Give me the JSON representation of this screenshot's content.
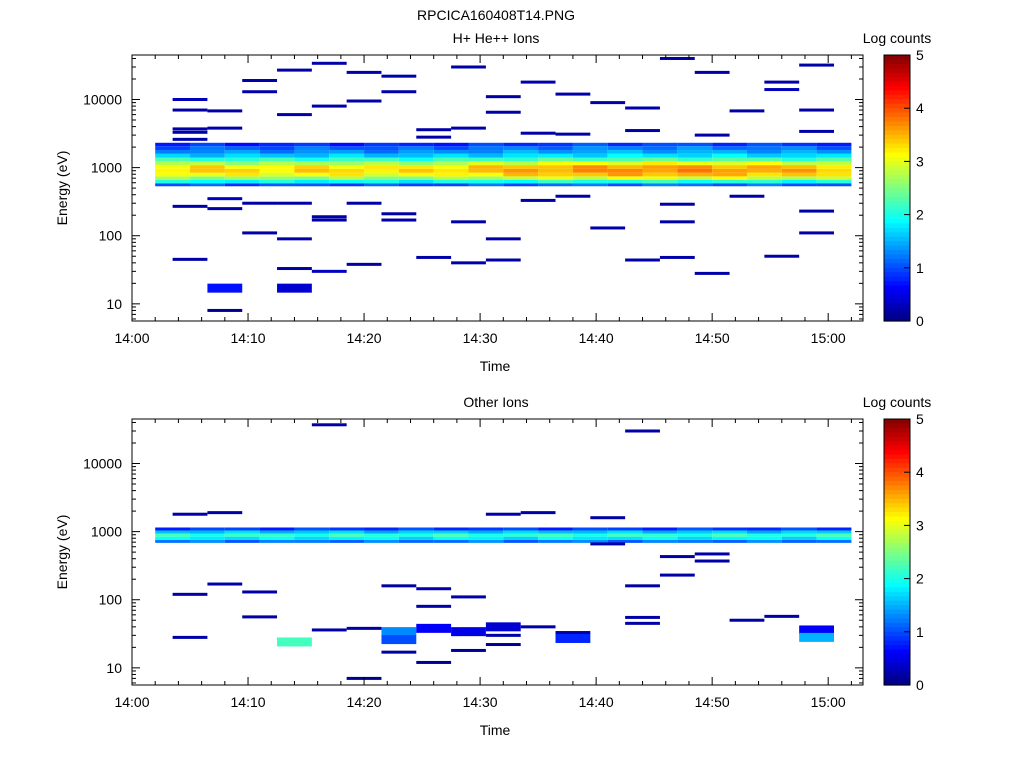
{
  "figure": {
    "title": "RPCICA160408T14.PNG"
  },
  "chart_data": [
    {
      "type": "heatmap",
      "title": "H+ He++ Ions",
      "xlabel": "Time",
      "ylabel": "Energy (eV)",
      "x_ticks": [
        "14:00",
        "14:10",
        "14:20",
        "14:30",
        "14:40",
        "14:50",
        "15:00"
      ],
      "x_range_minutes": [
        0,
        63
      ],
      "y_ticks": [
        10,
        100,
        1000,
        10000
      ],
      "y_scale": "log",
      "y_range": [
        5.6,
        45000
      ],
      "colorbar": {
        "label": "Log counts",
        "ticks": [
          0,
          1,
          2,
          3,
          4,
          5
        ],
        "range": [
          0,
          5
        ]
      },
      "time_columns_minutes": [
        3.5,
        6.5,
        9.5,
        12.5,
        15.5,
        18.5,
        21.5,
        24.5,
        27.5,
        30.5,
        33.5,
        36.5,
        39.5,
        42.5,
        45.5,
        48.5,
        51.5,
        54.5,
        57.5,
        60.5
      ],
      "core_band": {
        "energies_eV": [
          560,
          620,
          700,
          790,
          900,
          1020,
          1160,
          1320,
          1500,
          1700,
          1930,
          2200
        ],
        "profile_log_counts": [
          1.0,
          1.9,
          2.6,
          3.1,
          3.3,
          3.2,
          2.7,
          2.1,
          1.6,
          1.3,
          1.1,
          0.8
        ]
      },
      "sporadic": [
        {
          "t": 5,
          "e": 3300,
          "v": 0.2
        },
        {
          "t": 5,
          "e": 2600,
          "v": 0.2
        },
        {
          "t": 5,
          "e": 10000,
          "v": 0.3
        },
        {
          "t": 5,
          "e": 7000,
          "v": 0.2
        },
        {
          "t": 5,
          "e": 3700,
          "v": 0.2
        },
        {
          "t": 5,
          "e": 270,
          "v": 0.2
        },
        {
          "t": 5,
          "e": 45,
          "v": 0.2
        },
        {
          "t": 8,
          "e": 3800,
          "v": 0.2
        },
        {
          "t": 8,
          "e": 6800,
          "v": 0.2
        },
        {
          "t": 8,
          "e": 350,
          "v": 0.3
        },
        {
          "t": 8,
          "e": 250,
          "v": 0.2
        },
        {
          "t": 8,
          "e": 17,
          "v": 0.7
        },
        {
          "t": 8,
          "e": 8,
          "v": 0.1
        },
        {
          "t": 11,
          "e": 19000,
          "v": 0.2
        },
        {
          "t": 11,
          "e": 13000,
          "v": 0.2
        },
        {
          "t": 11,
          "e": 300,
          "v": 0.2
        },
        {
          "t": 11,
          "e": 110,
          "v": 0.2
        },
        {
          "t": 14,
          "e": 27000,
          "v": 0.2
        },
        {
          "t": 14,
          "e": 6000,
          "v": 0.2
        },
        {
          "t": 14,
          "e": 300,
          "v": 0.2
        },
        {
          "t": 14,
          "e": 90,
          "v": 0.2
        },
        {
          "t": 14,
          "e": 33,
          "v": 0.2
        },
        {
          "t": 14,
          "e": 17,
          "v": 0.4
        },
        {
          "t": 17,
          "e": 34000,
          "v": 0.2
        },
        {
          "t": 17,
          "e": 8000,
          "v": 0.2
        },
        {
          "t": 17,
          "e": 190,
          "v": 0.2
        },
        {
          "t": 17,
          "e": 170,
          "v": 0.2
        },
        {
          "t": 17,
          "e": 30,
          "v": 0.3
        },
        {
          "t": 20,
          "e": 9500,
          "v": 0.2
        },
        {
          "t": 20,
          "e": 25000,
          "v": 0.2
        },
        {
          "t": 20,
          "e": 300,
          "v": 0.2
        },
        {
          "t": 20,
          "e": 38,
          "v": 0.2
        },
        {
          "t": 23,
          "e": 22000,
          "v": 0.2
        },
        {
          "t": 23,
          "e": 13000,
          "v": 0.2
        },
        {
          "t": 23,
          "e": 210,
          "v": 0.2
        },
        {
          "t": 23,
          "e": 170,
          "v": 0.2
        },
        {
          "t": 26,
          "e": 3600,
          "v": 0.2
        },
        {
          "t": 26,
          "e": 2800,
          "v": 0.2
        },
        {
          "t": 26,
          "e": 48,
          "v": 0.2
        },
        {
          "t": 29,
          "e": 30000,
          "v": 0.2
        },
        {
          "t": 29,
          "e": 3800,
          "v": 0.2
        },
        {
          "t": 29,
          "e": 160,
          "v": 0.2
        },
        {
          "t": 29,
          "e": 40,
          "v": 0.2
        },
        {
          "t": 32,
          "e": 6500,
          "v": 0.2
        },
        {
          "t": 32,
          "e": 11000,
          "v": 0.2
        },
        {
          "t": 32,
          "e": 90,
          "v": 0.2
        },
        {
          "t": 32,
          "e": 44,
          "v": 0.2
        },
        {
          "t": 35,
          "e": 18000,
          "v": 0.2
        },
        {
          "t": 35,
          "e": 3200,
          "v": 0.2
        },
        {
          "t": 35,
          "e": 330,
          "v": 0.2
        },
        {
          "t": 38,
          "e": 12000,
          "v": 0.2
        },
        {
          "t": 38,
          "e": 3100,
          "v": 0.2
        },
        {
          "t": 38,
          "e": 380,
          "v": 0.2
        },
        {
          "t": 41,
          "e": 9000,
          "v": 0.2
        },
        {
          "t": 41,
          "e": 130,
          "v": 0.2
        },
        {
          "t": 44,
          "e": 3500,
          "v": 0.2
        },
        {
          "t": 44,
          "e": 7500,
          "v": 0.2
        },
        {
          "t": 44,
          "e": 44,
          "v": 0.2
        },
        {
          "t": 47,
          "e": 40000,
          "v": 0.2
        },
        {
          "t": 47,
          "e": 290,
          "v": 0.2
        },
        {
          "t": 47,
          "e": 160,
          "v": 0.2
        },
        {
          "t": 47,
          "e": 48,
          "v": 0.2
        },
        {
          "t": 50,
          "e": 25000,
          "v": 0.2
        },
        {
          "t": 50,
          "e": 3000,
          "v": 0.2
        },
        {
          "t": 50,
          "e": 28,
          "v": 0.2
        },
        {
          "t": 53,
          "e": 6800,
          "v": 0.2
        },
        {
          "t": 53,
          "e": 380,
          "v": 0.2
        },
        {
          "t": 56,
          "e": 18000,
          "v": 0.2
        },
        {
          "t": 56,
          "e": 14000,
          "v": 0.3
        },
        {
          "t": 56,
          "e": 50,
          "v": 0.2
        },
        {
          "t": 59,
          "e": 32000,
          "v": 0.2
        },
        {
          "t": 59,
          "e": 7000,
          "v": 0.2
        },
        {
          "t": 59,
          "e": 3400,
          "v": 0.2
        },
        {
          "t": 59,
          "e": 230,
          "v": 0.2
        },
        {
          "t": 59,
          "e": 110,
          "v": 0.2
        }
      ]
    },
    {
      "type": "heatmap",
      "title": "Other Ions",
      "xlabel": "Time",
      "ylabel": "Energy (eV)",
      "x_ticks": [
        "14:00",
        "14:10",
        "14:20",
        "14:30",
        "14:40",
        "14:50",
        "15:00"
      ],
      "x_range_minutes": [
        0,
        63
      ],
      "y_ticks": [
        10,
        100,
        1000,
        10000
      ],
      "y_scale": "log",
      "y_range": [
        5.6,
        45000
      ],
      "colorbar": {
        "label": "Log counts",
        "ticks": [
          0,
          1,
          2,
          3,
          4,
          5
        ],
        "range": [
          0,
          5
        ]
      },
      "time_columns_minutes": [
        3.5,
        6.5,
        9.5,
        12.5,
        15.5,
        18.5,
        21.5,
        24.5,
        27.5,
        30.5,
        33.5,
        36.5,
        39.5,
        42.5,
        45.5,
        48.5,
        51.5,
        54.5,
        57.5,
        60.5
      ],
      "core_band": {
        "energies_eV": [
          720,
          800,
          890,
          990,
          1090
        ],
        "profile_log_counts": [
          1.2,
          1.8,
          2.1,
          1.6,
          0.9
        ]
      },
      "sporadic": [
        {
          "t": 5,
          "e": 1800,
          "v": 0.2
        },
        {
          "t": 5,
          "e": 120,
          "v": 0.2
        },
        {
          "t": 5,
          "e": 28,
          "v": 0.2
        },
        {
          "t": 8,
          "e": 1900,
          "v": 0.2
        },
        {
          "t": 8,
          "e": 170,
          "v": 0.2
        },
        {
          "t": 11,
          "e": 130,
          "v": 0.2
        },
        {
          "t": 11,
          "e": 56,
          "v": 0.2
        },
        {
          "t": 14,
          "e": 24,
          "v": 2.2
        },
        {
          "t": 17,
          "e": 37000,
          "v": 0.2
        },
        {
          "t": 17,
          "e": 36,
          "v": 0.2
        },
        {
          "t": 20,
          "e": 38,
          "v": 0.2
        },
        {
          "t": 20,
          "e": 7,
          "v": 0.1
        },
        {
          "t": 23,
          "e": 160,
          "v": 0.2
        },
        {
          "t": 23,
          "e": 34,
          "v": 1.3
        },
        {
          "t": 23,
          "e": 26,
          "v": 1.0
        },
        {
          "t": 23,
          "e": 17,
          "v": 0.2
        },
        {
          "t": 26,
          "e": 145,
          "v": 0.2
        },
        {
          "t": 26,
          "e": 80,
          "v": 0.2
        },
        {
          "t": 26,
          "e": 38,
          "v": 0.6
        },
        {
          "t": 26,
          "e": 12,
          "v": 0.1
        },
        {
          "t": 29,
          "e": 110,
          "v": 0.2
        },
        {
          "t": 29,
          "e": 34,
          "v": 0.5
        },
        {
          "t": 29,
          "e": 18,
          "v": 0.1
        },
        {
          "t": 32,
          "e": 1800,
          "v": 0.2
        },
        {
          "t": 32,
          "e": 40,
          "v": 0.4
        },
        {
          "t": 32,
          "e": 30,
          "v": 0.2
        },
        {
          "t": 32,
          "e": 22,
          "v": 0.1
        },
        {
          "t": 35,
          "e": 1900,
          "v": 0.2
        },
        {
          "t": 35,
          "e": 40,
          "v": 0.2
        },
        {
          "t": 38,
          "e": 33,
          "v": 0.2
        },
        {
          "t": 38,
          "e": 27,
          "v": 0.8
        },
        {
          "t": 41,
          "e": 1600,
          "v": 0.2
        },
        {
          "t": 41,
          "e": 660,
          "v": 0.2
        },
        {
          "t": 44,
          "e": 30000,
          "v": 0.2
        },
        {
          "t": 44,
          "e": 160,
          "v": 0.2
        },
        {
          "t": 44,
          "e": 55,
          "v": 0.2
        },
        {
          "t": 44,
          "e": 45,
          "v": 0.2
        },
        {
          "t": 47,
          "e": 430,
          "v": 0.2
        },
        {
          "t": 47,
          "e": 230,
          "v": 0.2
        },
        {
          "t": 50,
          "e": 470,
          "v": 0.2
        },
        {
          "t": 50,
          "e": 370,
          "v": 0.2
        },
        {
          "t": 53,
          "e": 50,
          "v": 0.2
        },
        {
          "t": 56,
          "e": 57,
          "v": 0.2
        },
        {
          "t": 59,
          "e": 36,
          "v": 0.6
        },
        {
          "t": 59,
          "e": 28,
          "v": 1.5
        }
      ]
    }
  ]
}
